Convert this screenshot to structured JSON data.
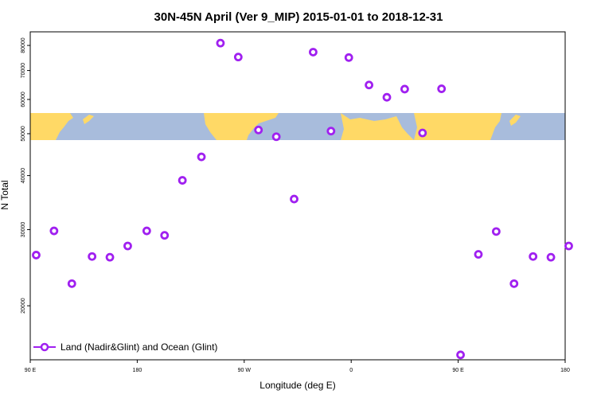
{
  "chart_data": {
    "type": "scatter",
    "title": "30N-45N April (Ver 9_MIP)   2015-01-01 to 2018-12-31",
    "xlabel": "Longitude (deg E)",
    "ylabel": "N Total",
    "x_tick_labels": [
      "90 E",
      "180",
      "90 W",
      "0",
      "90 E",
      "180"
    ],
    "y_tick_labels": [
      "20000",
      "30000",
      "40000",
      "50000",
      "60000",
      "70000",
      "80000"
    ],
    "y_scale": "log",
    "ylim": [
      15000,
      86000
    ],
    "legend": {
      "position": "bottom-left",
      "label": "Land (Nadir&Glint) and Ocean (Glint)"
    },
    "colors": {
      "series": "#a020f0",
      "ocean": "#a8bcdc",
      "land": "#ffd966"
    },
    "series": [
      {
        "name": "Land (Nadir&Glint) and Ocean (Glint)",
        "x": [
          95,
          110,
          125,
          142,
          157,
          172,
          188,
          203,
          218,
          234,
          250,
          265,
          282,
          297,
          312,
          328,
          343,
          358,
          375,
          390,
          405,
          420,
          436,
          452,
          467,
          482,
          497,
          513,
          528,
          543
        ],
        "y": [
          26200,
          29800,
          22500,
          26000,
          25900,
          27500,
          29800,
          29100,
          39000,
          44200,
          81000,
          75200,
          51000,
          49200,
          35300,
          77200,
          50700,
          75000,
          64800,
          60700,
          63400,
          50200,
          63500,
          15400,
          26300,
          29700,
          22500,
          26000,
          25900,
          27500
        ]
      }
    ]
  }
}
